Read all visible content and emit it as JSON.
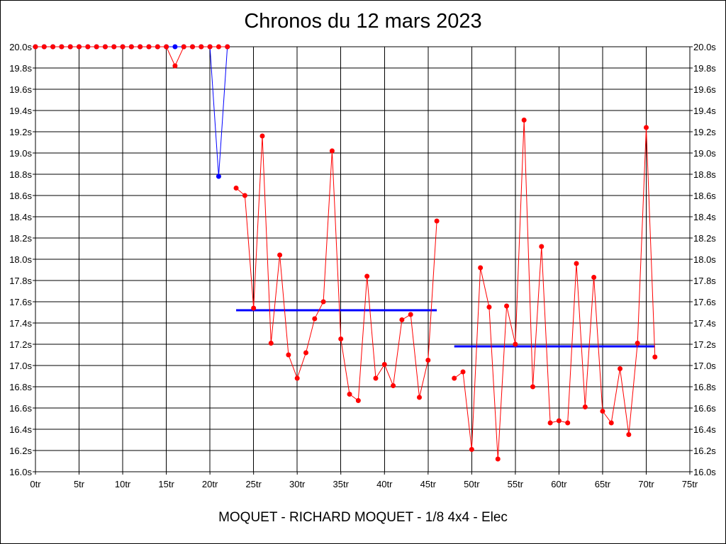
{
  "chart_data": {
    "type": "line",
    "title": "Chronos du 12 mars 2023",
    "subtitle": "MOQUET - RICHARD MOQUET - 1/8 4x4 - Elec",
    "xlim": [
      0,
      75
    ],
    "ylim": [
      16.0,
      20.0
    ],
    "x_ticks": [
      "0tr",
      "5tr",
      "10tr",
      "15tr",
      "20tr",
      "25tr",
      "30tr",
      "35tr",
      "40tr",
      "45tr",
      "50tr",
      "55tr",
      "60tr",
      "65tr",
      "70tr",
      "75tr"
    ],
    "y_ticks": [
      "16.0s",
      "16.2s",
      "16.4s",
      "16.6s",
      "16.8s",
      "17.0s",
      "17.2s",
      "17.4s",
      "17.6s",
      "17.8s",
      "18.0s",
      "18.2s",
      "18.4s",
      "18.6s",
      "18.8s",
      "19.0s",
      "19.2s",
      "19.4s",
      "19.6s",
      "19.8s",
      "20.0s"
    ],
    "grid": true,
    "colors": {
      "red": "#ff0000",
      "blue": "#0000ff",
      "grid": "#000000"
    },
    "series": [
      {
        "color": "blue",
        "segments": [
          [
            [
              0,
              20.0
            ],
            [
              1,
              20.0
            ],
            [
              2,
              20.0
            ],
            [
              3,
              20.0
            ],
            [
              4,
              20.0
            ],
            [
              5,
              20.0
            ],
            [
              6,
              20.0
            ],
            [
              7,
              20.0
            ],
            [
              8,
              20.0
            ],
            [
              9,
              20.0
            ],
            [
              10,
              20.0
            ],
            [
              11,
              20.0
            ],
            [
              12,
              20.0
            ],
            [
              13,
              20.0
            ],
            [
              14,
              20.0
            ],
            [
              15,
              20.0
            ],
            [
              16,
              20.0
            ],
            [
              17,
              20.0
            ],
            [
              18,
              20.0
            ],
            [
              19,
              20.0
            ],
            [
              20,
              20.0
            ],
            [
              21,
              18.78
            ],
            [
              22,
              20.0
            ]
          ]
        ]
      },
      {
        "color": "red",
        "segments": [
          [
            [
              0,
              20.0
            ],
            [
              1,
              20.0
            ],
            [
              2,
              20.0
            ],
            [
              3,
              20.0
            ],
            [
              4,
              20.0
            ],
            [
              5,
              20.0
            ],
            [
              6,
              20.0
            ],
            [
              7,
              20.0
            ],
            [
              8,
              20.0
            ],
            [
              9,
              20.0
            ],
            [
              10,
              20.0
            ],
            [
              11,
              20.0
            ],
            [
              12,
              20.0
            ],
            [
              13,
              20.0
            ],
            [
              14,
              20.0
            ],
            [
              15,
              20.0
            ],
            [
              16,
              19.82
            ],
            [
              17,
              20.0
            ],
            [
              18,
              20.0
            ],
            [
              19,
              20.0
            ],
            [
              20,
              20.0
            ],
            [
              21,
              20.0
            ],
            [
              22,
              20.0
            ]
          ],
          [
            [
              23,
              18.67
            ],
            [
              24,
              18.6
            ],
            [
              25,
              17.54
            ],
            [
              26,
              19.16
            ],
            [
              27,
              17.21
            ],
            [
              28,
              18.04
            ],
            [
              29,
              17.1
            ],
            [
              30,
              16.88
            ],
            [
              31,
              17.12
            ],
            [
              32,
              17.44
            ],
            [
              33,
              17.6
            ],
            [
              34,
              19.02
            ],
            [
              35,
              17.25
            ],
            [
              36,
              16.73
            ],
            [
              37,
              16.67
            ],
            [
              38,
              17.84
            ],
            [
              39,
              16.88
            ],
            [
              40,
              17.01
            ],
            [
              41,
              16.81
            ],
            [
              42,
              17.43
            ],
            [
              43,
              17.48
            ],
            [
              44,
              16.7
            ],
            [
              45,
              17.05
            ],
            [
              46,
              18.36
            ]
          ],
          [
            [
              48,
              16.88
            ],
            [
              49,
              16.94
            ],
            [
              50,
              16.21
            ],
            [
              51,
              17.92
            ],
            [
              52,
              17.55
            ],
            [
              53,
              16.12
            ],
            [
              54,
              17.56
            ],
            [
              55,
              17.2
            ],
            [
              56,
              19.31
            ],
            [
              57,
              16.8
            ],
            [
              58,
              18.12
            ],
            [
              59,
              16.46
            ],
            [
              60,
              16.48
            ],
            [
              61,
              16.46
            ],
            [
              62,
              17.96
            ],
            [
              63,
              16.61
            ],
            [
              64,
              17.83
            ],
            [
              65,
              16.57
            ],
            [
              66,
              16.46
            ],
            [
              67,
              16.97
            ],
            [
              68,
              16.35
            ],
            [
              69,
              17.21
            ],
            [
              70,
              19.24
            ],
            [
              71,
              17.08
            ]
          ]
        ]
      }
    ],
    "averages": [
      {
        "color": "blue",
        "x": [
          23,
          46
        ],
        "y": 17.52
      },
      {
        "color": "blue",
        "x": [
          48,
          71
        ],
        "y": 17.18
      }
    ]
  }
}
